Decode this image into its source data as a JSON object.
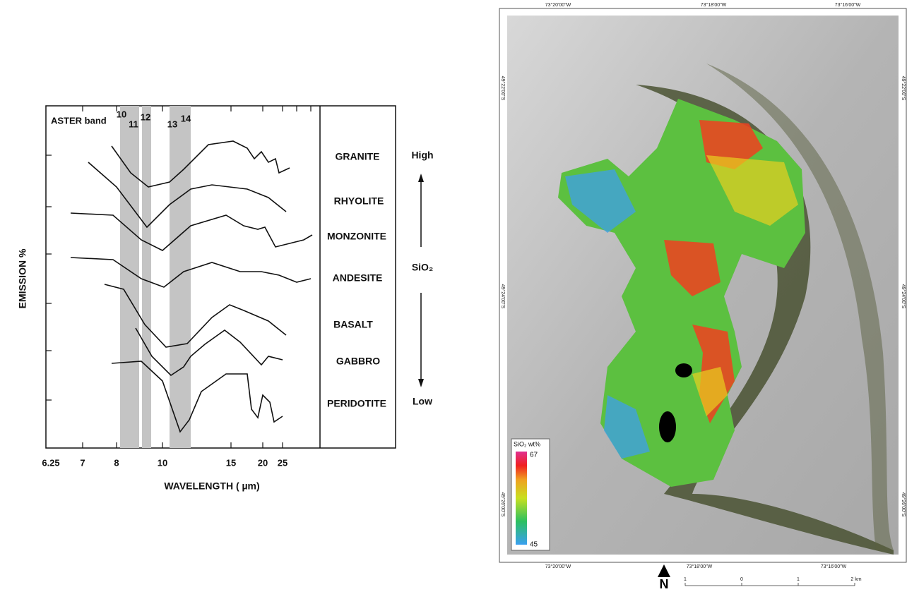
{
  "spectra": {
    "band_label": "ASTER band",
    "bands": [
      "10",
      "11",
      "12",
      "13",
      "14"
    ],
    "rocks": [
      "GRANITE",
      "RHYOLITE",
      "MONZONITE",
      "ANDESITE",
      "BASALT",
      "GABBRO",
      "PERIDOTITE"
    ],
    "scale_high": "High",
    "scale_mid": "SiO₂",
    "scale_low": "Low",
    "y_label": "EMISSION %",
    "x_label": "WAVELENGTH ( µm)",
    "x_ticks": [
      "6.25",
      "7",
      "8",
      "10",
      "15",
      "20",
      "25"
    ]
  },
  "map": {
    "top_coords": [
      "73°20'00\"W",
      "73°18'00\"W",
      "73°16'00\"W"
    ],
    "bottom_coords": [
      "73°20'00\"W",
      "73°18'00\"W",
      "73°16'00\"W"
    ],
    "left_coords": [
      "49°22'00\"S",
      "49°24'00\"S",
      "49°26'00\"S"
    ],
    "right_coords": [
      "49°22'00\"S",
      "49°24'00\"S",
      "49°26'00\"S"
    ],
    "legend_title": "SiO₂ wt%",
    "legend_max": "67",
    "legend_min": "45",
    "north": "N",
    "scale_ticks": [
      "1",
      "0",
      "1",
      "2 km"
    ]
  }
}
